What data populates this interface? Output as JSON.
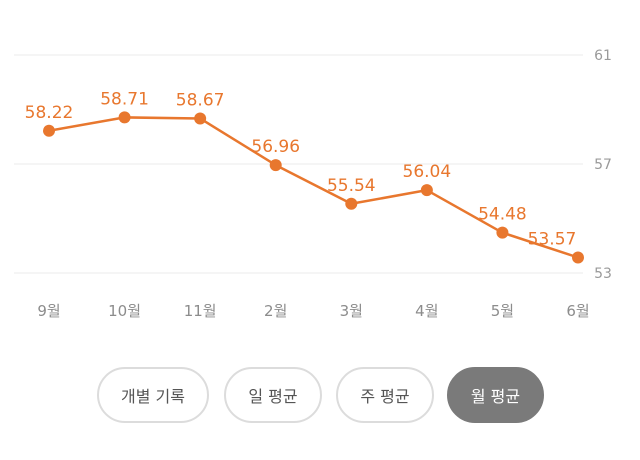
{
  "chart_data": {
    "type": "line",
    "categories": [
      "9월",
      "10월",
      "11월",
      "2월",
      "3월",
      "4월",
      "5월",
      "6월"
    ],
    "series": [
      {
        "values": [
          58.22,
          58.71,
          58.67,
          56.96,
          55.54,
          56.04,
          54.48,
          53.57
        ]
      }
    ],
    "data_labels": [
      "58.22",
      "58.71",
      "58.67",
      "56.96",
      "55.54",
      "56.04",
      "54.48",
      "53.57"
    ],
    "y_ticks": [
      "61",
      "57",
      "53"
    ],
    "ylim": [
      53,
      61
    ],
    "y_axis_position": "right",
    "grid": true,
    "line_color": "#e8772e"
  },
  "filters": {
    "items": [
      {
        "label": "개별 기록",
        "active": false
      },
      {
        "label": "일 평균",
        "active": false
      },
      {
        "label": "주 평균",
        "active": false
      },
      {
        "label": "월 평균",
        "active": true
      }
    ]
  },
  "colors": {
    "accent": "#e8772e",
    "active_button_bg": "#7a7a7a",
    "inactive_button_border": "#dcdcdc"
  }
}
